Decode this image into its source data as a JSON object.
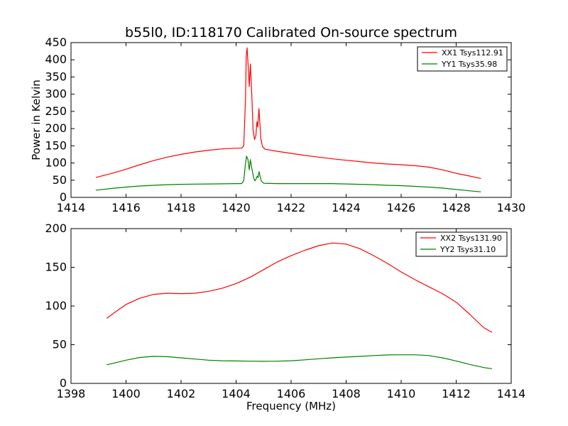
{
  "chart_data": [
    {
      "type": "line",
      "title": "b55l0, ID:118170 Calibrated On-source spectrum",
      "xlabel": "",
      "ylabel": "Power in Kelvin",
      "xlim": [
        1414,
        1430
      ],
      "ylim": [
        0,
        450
      ],
      "xticks": [
        "1414",
        "1416",
        "1418",
        "1420",
        "1422",
        "1424",
        "1426",
        "1428",
        "1430"
      ],
      "yticks": [
        "0",
        "50",
        "100",
        "150",
        "200",
        "250",
        "300",
        "350",
        "400",
        "450"
      ],
      "grid": false,
      "legend_position": "top-right",
      "series": [
        {
          "name": "XX1 Tsys112.91",
          "color": "#ff0000",
          "points": [
            [
              1414.9,
              58
            ],
            [
              1415.5,
              70
            ],
            [
              1416.0,
              82
            ],
            [
              1416.5,
              95
            ],
            [
              1417.0,
              107
            ],
            [
              1417.5,
              117
            ],
            [
              1418.0,
              125
            ],
            [
              1418.5,
              132
            ],
            [
              1419.0,
              137
            ],
            [
              1419.5,
              141
            ],
            [
              1420.0,
              143
            ],
            [
              1420.2,
              143
            ],
            [
              1420.28,
              150
            ],
            [
              1420.34,
              280
            ],
            [
              1420.37,
              410
            ],
            [
              1420.4,
              435
            ],
            [
              1420.44,
              380
            ],
            [
              1420.48,
              322
            ],
            [
              1420.52,
              388
            ],
            [
              1420.57,
              300
            ],
            [
              1420.62,
              195
            ],
            [
              1420.67,
              168
            ],
            [
              1420.72,
              180
            ],
            [
              1420.76,
              220
            ],
            [
              1420.79,
              205
            ],
            [
              1420.83,
              258
            ],
            [
              1420.86,
              222
            ],
            [
              1420.9,
              170
            ],
            [
              1420.96,
              148
            ],
            [
              1421.05,
              140
            ],
            [
              1421.5,
              134
            ],
            [
              1422.0,
              128
            ],
            [
              1422.5,
              122
            ],
            [
              1423.0,
              117
            ],
            [
              1423.5,
              112
            ],
            [
              1424.0,
              108
            ],
            [
              1424.5,
              104
            ],
            [
              1425.0,
              100
            ],
            [
              1425.5,
              97
            ],
            [
              1426.0,
              95
            ],
            [
              1426.5,
              92
            ],
            [
              1427.0,
              88
            ],
            [
              1427.5,
              80
            ],
            [
              1428.0,
              70
            ],
            [
              1428.5,
              62
            ],
            [
              1428.9,
              55
            ]
          ]
        },
        {
          "name": "YY1 Tsys35.98",
          "color": "#008000",
          "points": [
            [
              1414.9,
              21
            ],
            [
              1415.5,
              26
            ],
            [
              1416.0,
              30
            ],
            [
              1416.5,
              33
            ],
            [
              1417.0,
              35
            ],
            [
              1417.5,
              37
            ],
            [
              1418.0,
              38
            ],
            [
              1418.5,
              38.5
            ],
            [
              1419.0,
              39
            ],
            [
              1419.5,
              39.5
            ],
            [
              1420.0,
              40
            ],
            [
              1420.2,
              40
            ],
            [
              1420.28,
              48
            ],
            [
              1420.33,
              90
            ],
            [
              1420.38,
              120
            ],
            [
              1420.43,
              110
            ],
            [
              1420.48,
              80
            ],
            [
              1420.52,
              110
            ],
            [
              1420.57,
              85
            ],
            [
              1420.63,
              60
            ],
            [
              1420.68,
              48
            ],
            [
              1420.72,
              52
            ],
            [
              1420.77,
              62
            ],
            [
              1420.8,
              58
            ],
            [
              1420.84,
              75
            ],
            [
              1420.87,
              62
            ],
            [
              1420.92,
              47
            ],
            [
              1421.0,
              41
            ],
            [
              1421.5,
              40
            ],
            [
              1422.0,
              40
            ],
            [
              1422.5,
              40
            ],
            [
              1423.0,
              40
            ],
            [
              1423.5,
              40
            ],
            [
              1424.0,
              39
            ],
            [
              1424.5,
              38
            ],
            [
              1425.0,
              37
            ],
            [
              1425.5,
              35
            ],
            [
              1426.0,
              34
            ],
            [
              1426.5,
              32
            ],
            [
              1427.0,
              30
            ],
            [
              1427.5,
              27
            ],
            [
              1428.0,
              23
            ],
            [
              1428.5,
              19
            ],
            [
              1428.9,
              16
            ]
          ]
        }
      ]
    },
    {
      "type": "line",
      "title": "",
      "xlabel": "Frequency (MHz)",
      "ylabel": "",
      "xlim": [
        1398,
        1414
      ],
      "ylim": [
        0,
        200
      ],
      "xticks": [
        "1398",
        "1400",
        "1402",
        "1404",
        "1406",
        "1408",
        "1410",
        "1412",
        "1414"
      ],
      "yticks": [
        "0",
        "50",
        "100",
        "150",
        "200"
      ],
      "grid": false,
      "legend_position": "top-right",
      "series": [
        {
          "name": "XX2 Tsys131.90",
          "color": "#ff0000",
          "points": [
            [
              1399.3,
              84
            ],
            [
              1399.6,
              92
            ],
            [
              1400.0,
              102
            ],
            [
              1400.5,
              110
            ],
            [
              1401.0,
              115
            ],
            [
              1401.5,
              116.5
            ],
            [
              1402.0,
              116
            ],
            [
              1402.5,
              116.5
            ],
            [
              1403.0,
              119
            ],
            [
              1403.5,
              123
            ],
            [
              1404.0,
              129
            ],
            [
              1404.5,
              137
            ],
            [
              1405.0,
              147
            ],
            [
              1405.5,
              157
            ],
            [
              1406.0,
              165
            ],
            [
              1406.5,
              172
            ],
            [
              1407.0,
              178
            ],
            [
              1407.5,
              181.5
            ],
            [
              1408.0,
              180
            ],
            [
              1408.5,
              174
            ],
            [
              1409.0,
              165
            ],
            [
              1409.5,
              155
            ],
            [
              1410.0,
              144
            ],
            [
              1410.5,
              134
            ],
            [
              1411.0,
              125
            ],
            [
              1411.5,
              116
            ],
            [
              1412.0,
              105
            ],
            [
              1412.5,
              89
            ],
            [
              1413.0,
              72
            ],
            [
              1413.3,
              66
            ]
          ]
        },
        {
          "name": "YY2 Tsys31.10",
          "color": "#008000",
          "points": [
            [
              1399.3,
              24
            ],
            [
              1399.6,
              26.5
            ],
            [
              1400.0,
              30
            ],
            [
              1400.5,
              33.5
            ],
            [
              1401.0,
              35
            ],
            [
              1401.5,
              34.5
            ],
            [
              1402.0,
              33
            ],
            [
              1402.5,
              31.5
            ],
            [
              1403.0,
              30
            ],
            [
              1403.5,
              29.3
            ],
            [
              1404.0,
              29
            ],
            [
              1404.5,
              28.7
            ],
            [
              1405.0,
              28.5
            ],
            [
              1405.5,
              28.7
            ],
            [
              1406.0,
              29.3
            ],
            [
              1406.5,
              30.5
            ],
            [
              1407.0,
              31.8
            ],
            [
              1407.5,
              33
            ],
            [
              1408.0,
              34
            ],
            [
              1408.5,
              35
            ],
            [
              1409.0,
              36
            ],
            [
              1409.5,
              36.8
            ],
            [
              1410.0,
              37
            ],
            [
              1410.5,
              37
            ],
            [
              1411.0,
              36
            ],
            [
              1411.5,
              33
            ],
            [
              1412.0,
              29
            ],
            [
              1412.5,
              24.5
            ],
            [
              1413.0,
              20.5
            ],
            [
              1413.3,
              19
            ]
          ]
        }
      ]
    }
  ]
}
